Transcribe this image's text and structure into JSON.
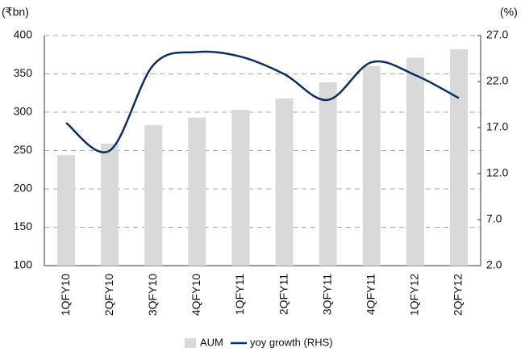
{
  "chart_data": {
    "type": "bar_line",
    "ylabel": "(₹bn)",
    "y2label": "(%)",
    "categories": [
      "1QFY10",
      "2QFY10",
      "3QFY10",
      "4QFY10",
      "1QFY11",
      "2QFY11",
      "3QFY11",
      "4QFY11",
      "1QFY12",
      "2QFY12"
    ],
    "series": [
      {
        "name": "AUM",
        "type": "bar",
        "color": "#d9d9d9",
        "values": [
          244,
          259,
          283,
          293,
          303,
          318,
          339,
          360,
          371,
          382
        ]
      },
      {
        "name": "yoy growth (RHS)",
        "type": "line",
        "axis": "y2",
        "color": "#0d2f5e",
        "values": [
          17.5,
          14.5,
          23.8,
          25.2,
          24.7,
          22.8,
          20.0,
          24.1,
          22.7,
          20.2
        ]
      }
    ],
    "ylim": [
      100,
      400
    ],
    "yticks": [
      100,
      150,
      200,
      250,
      300,
      350,
      400
    ],
    "y2lim": [
      2,
      27
    ],
    "y2ticks": [
      {
        "value": 2,
        "label": "2.0"
      },
      {
        "value": 7,
        "label": "7.0"
      },
      {
        "value": 12,
        "label": "12.0"
      },
      {
        "value": 17,
        "label": "17.0"
      },
      {
        "value": 22,
        "label": "22.0"
      },
      {
        "value": 27,
        "label": "27.0"
      }
    ],
    "grid": true,
    "legend": "bottom"
  }
}
